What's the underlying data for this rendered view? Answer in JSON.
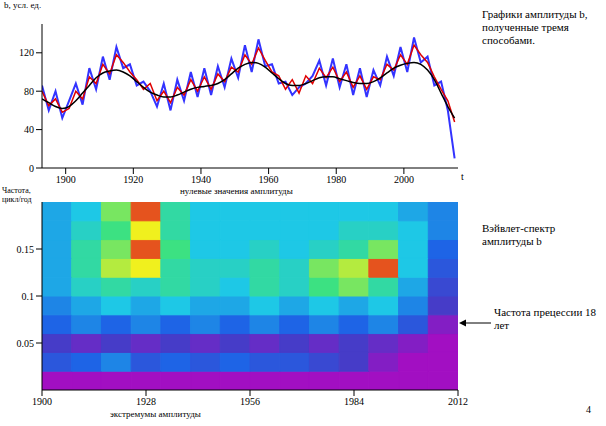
{
  "chart_data": [
    {
      "type": "line",
      "title": "Графики амплитуды b, полученные тремя способами.",
      "y_label": "b, усл. ед.",
      "x_label": "t",
      "grid": false,
      "xlim": [
        1893,
        2016
      ],
      "xticks": [
        1900,
        1920,
        1940,
        1960,
        1980,
        2000
      ],
      "ylim": [
        0,
        150
      ],
      "yticks": [
        0,
        40,
        80,
        120
      ],
      "x": [
        1893,
        1895,
        1897,
        1899,
        1901,
        1903,
        1905,
        1907,
        1909,
        1911,
        1913,
        1915,
        1917,
        1919,
        1921,
        1923,
        1925,
        1927,
        1929,
        1931,
        1933,
        1935,
        1937,
        1939,
        1941,
        1943,
        1945,
        1947,
        1949,
        1951,
        1953,
        1955,
        1957,
        1959,
        1961,
        1963,
        1965,
        1967,
        1969,
        1971,
        1973,
        1975,
        1977,
        1979,
        1981,
        1983,
        1985,
        1987,
        1989,
        1991,
        1993,
        1995,
        1997,
        1999,
        2001,
        2003,
        2005,
        2007,
        2009,
        2011,
        2013,
        2015
      ],
      "series": [
        {
          "color": "#3333ff",
          "values": [
            86,
            60,
            80,
            52,
            70,
            88,
            66,
            104,
            82,
            116,
            92,
            126,
            104,
            108,
            86,
            90,
            80,
            64,
            88,
            60,
            92,
            70,
            100,
            74,
            104,
            76,
            106,
            84,
            114,
            94,
            128,
            100,
            134,
            106,
            108,
            88,
            90,
            76,
            84,
            88,
            96,
            112,
            86,
            114,
            84,
            108,
            76,
            104,
            74,
            102,
            86,
            116,
            96,
            126,
            100,
            136,
            110,
            116,
            86,
            90,
            60,
            10
          ]
        },
        {
          "color": "#e00000",
          "values": [
            80,
            65,
            72,
            58,
            62,
            80,
            72,
            95,
            88,
            108,
            98,
            118,
            110,
            100,
            92,
            82,
            88,
            70,
            80,
            68,
            84,
            76,
            92,
            80,
            95,
            82,
            98,
            90,
            105,
            100,
            118,
            108,
            125,
            112,
            100,
            96,
            82,
            92,
            78,
            96,
            88,
            104,
            94,
            105,
            90,
            100,
            84,
            96,
            82,
            95,
            92,
            108,
            102,
            118,
            108,
            128,
            118,
            110,
            95,
            82,
            70,
            48
          ]
        },
        {
          "color": "#000000",
          "values": [
            72,
            68,
            64,
            62,
            64,
            70,
            78,
            86,
            94,
            99,
            101,
            102,
            100,
            96,
            90,
            84,
            79,
            76,
            74,
            74,
            76,
            79,
            82,
            84,
            85,
            86,
            88,
            92,
            98,
            104,
            108,
            110,
            109,
            105,
            99,
            93,
            88,
            86,
            86,
            88,
            91,
            94,
            95,
            95,
            93,
            91,
            89,
            88,
            88,
            90,
            94,
            99,
            104,
            107,
            109,
            110,
            108,
            102,
            92,
            78,
            64,
            52
          ]
        }
      ]
    },
    {
      "type": "heatmap",
      "title": "Вэйвлет-спектр амплитуды b",
      "y_label": "Частота, цикл/год",
      "grid": false,
      "annotations": {
        "zero_values": "нулевые значения амплитуды",
        "extrema": "экстремумы амплитуды",
        "precession": "Частота прецессии 18 лет"
      },
      "xlim": [
        1900,
        2012
      ],
      "xticks": [
        1900,
        1928,
        1956,
        1984,
        2012
      ],
      "ylim": [
        0,
        0.2
      ],
      "yticks": [
        0.05,
        0.1,
        0.15
      ],
      "x_edges": [
        1900,
        1908,
        1916,
        1924,
        1932,
        1940,
        1948,
        1956,
        1964,
        1972,
        1980,
        1988,
        1996,
        2004,
        2012
      ],
      "y_edges": [
        0,
        0.02,
        0.04,
        0.06,
        0.08,
        0.1,
        0.12,
        0.14,
        0.16,
        0.18,
        0.2
      ],
      "range": [
        0,
        1
      ],
      "cells": [
        [
          0.05,
          0.05,
          0.05,
          0.05,
          0.05,
          0.05,
          0.05,
          0.05,
          0.05,
          0.05,
          0.05,
          0.05,
          0.05,
          0.05
        ],
        [
          0.3,
          0.35,
          0.4,
          0.3,
          0.35,
          0.3,
          0.35,
          0.3,
          0.3,
          0.25,
          0.2,
          0.1,
          0.05,
          0.05
        ],
        [
          0.2,
          0.15,
          0.2,
          0.15,
          0.2,
          0.15,
          0.2,
          0.15,
          0.2,
          0.15,
          0.2,
          0.15,
          0.1,
          0.05
        ],
        [
          0.35,
          0.4,
          0.35,
          0.4,
          0.35,
          0.4,
          0.35,
          0.4,
          0.35,
          0.4,
          0.35,
          0.4,
          0.3,
          0.1
        ],
        [
          0.4,
          0.45,
          0.5,
          0.45,
          0.5,
          0.45,
          0.45,
          0.5,
          0.45,
          0.5,
          0.45,
          0.5,
          0.4,
          0.2
        ],
        [
          0.45,
          0.55,
          0.6,
          0.55,
          0.6,
          0.55,
          0.5,
          0.6,
          0.55,
          0.65,
          0.7,
          0.6,
          0.45,
          0.25
        ],
        [
          0.45,
          0.6,
          0.75,
          0.8,
          0.6,
          0.55,
          0.55,
          0.6,
          0.55,
          0.7,
          0.75,
          0.95,
          0.5,
          0.3
        ],
        [
          0.45,
          0.6,
          0.7,
          0.95,
          0.65,
          0.5,
          0.5,
          0.55,
          0.5,
          0.55,
          0.6,
          0.7,
          0.5,
          0.35
        ],
        [
          0.45,
          0.55,
          0.65,
          0.8,
          0.6,
          0.5,
          0.5,
          0.5,
          0.5,
          0.5,
          0.55,
          0.55,
          0.5,
          0.4
        ],
        [
          0.45,
          0.5,
          0.7,
          0.95,
          0.6,
          0.5,
          0.5,
          0.5,
          0.5,
          0.5,
          0.5,
          0.5,
          0.45,
          0.4
        ]
      ]
    }
  ],
  "page_number": "4"
}
